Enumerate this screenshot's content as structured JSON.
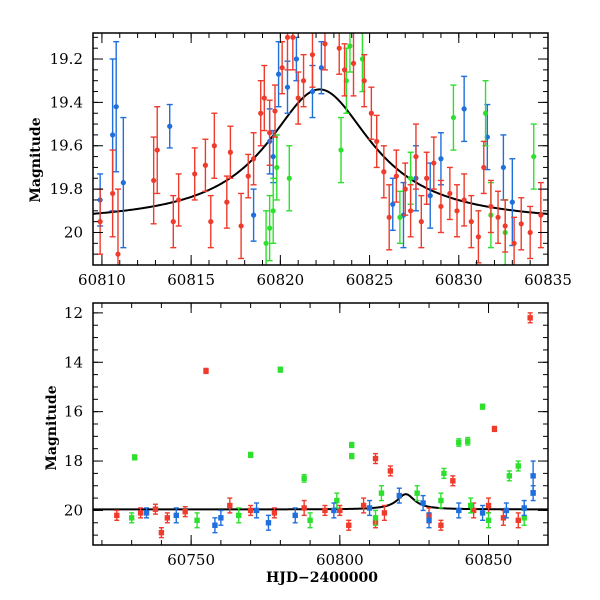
{
  "colors": {
    "red": "#ef3b2c",
    "green": "#2ee02e",
    "blue": "#1f6fdc",
    "model": "#000000"
  },
  "chart_data": [
    {
      "type": "scatter",
      "title": "",
      "xlabel": "",
      "ylabel": "Magnitude",
      "xlim": [
        60809.5,
        60835
      ],
      "ylim": [
        20.15,
        19.08
      ],
      "y_inverted": true,
      "xticks": [
        60810,
        60815,
        60820,
        60825,
        60830,
        60835
      ],
      "yticks": [
        19.2,
        19.4,
        19.6,
        19.8,
        20
      ],
      "xtick_labels": [
        "60810",
        "60815",
        "60820",
        "60825",
        "60830",
        "60835"
      ],
      "ytick_labels": [
        "19.2",
        "19.4",
        "19.6",
        "19.8",
        "20"
      ],
      "model": {
        "type": "lorentzian",
        "peak_x": 60822.2,
        "peak_y": 19.34,
        "baseline": 19.96,
        "width": 3.6,
        "color": "#000000"
      },
      "series": [
        {
          "color": "#1f6fdc",
          "points": [
            [
              60809.9,
              19.85,
              0.12
            ],
            [
              60810.6,
              19.55,
              0.35
            ],
            [
              60810.8,
              19.42,
              0.3
            ],
            [
              60811.2,
              19.77,
              0.3
            ],
            [
              60813.8,
              19.51,
              0.1
            ],
            [
              60818.5,
              19.92,
              0.12
            ],
            [
              60819.4,
              19.58,
              0.15
            ],
            [
              60819.6,
              19.65,
              0.12
            ],
            [
              60819.9,
              19.27,
              0.15
            ],
            [
              60820.4,
              19.33,
              0.12
            ],
            [
              60820.9,
              19.2,
              0.1
            ],
            [
              60821.8,
              19.35,
              0.12
            ],
            [
              60822.3,
              19.24,
              0.12
            ],
            [
              60826.3,
              19.87,
              0.12
            ],
            [
              60826.9,
              19.92,
              0.15
            ],
            [
              60827.6,
              19.75,
              0.15
            ],
            [
              60828.4,
              19.83,
              0.15
            ],
            [
              60829.0,
              19.66,
              0.12
            ],
            [
              60830.3,
              19.43,
              0.15
            ],
            [
              60831.6,
              19.56,
              0.15
            ],
            [
              60832.5,
              19.7,
              0.15
            ],
            [
              60833.0,
              19.86,
              0.2
            ]
          ]
        },
        {
          "color": "#2ee02e",
          "points": [
            [
              60819.2,
              20.05,
              0.15
            ],
            [
              60819.4,
              19.98,
              0.15
            ],
            [
              60819.6,
              19.9,
              0.15
            ],
            [
              60819.8,
              19.7,
              0.15
            ],
            [
              60820.5,
              19.75,
              0.15
            ],
            [
              60823.4,
              19.62,
              0.15
            ],
            [
              60823.7,
              19.3,
              0.15
            ],
            [
              60823.9,
              19.14,
              0.12
            ],
            [
              60824.6,
              19.2,
              0.15
            ],
            [
              60826.7,
              19.93,
              0.12
            ],
            [
              60827.3,
              19.75,
              0.12
            ],
            [
              60829.7,
              19.47,
              0.15
            ],
            [
              60831.5,
              19.45,
              0.15
            ],
            [
              60831.8,
              19.92,
              0.15
            ],
            [
              60832.6,
              20.0,
              0.15
            ],
            [
              60834.2,
              19.65,
              0.15
            ]
          ]
        },
        {
          "color": "#ef3b2c",
          "points": [
            [
              60809.9,
              19.95,
              0.15
            ],
            [
              60810.6,
              19.82,
              0.2
            ],
            [
              60810.9,
              20.1,
              0.3
            ],
            [
              60812.9,
              19.76,
              0.2
            ],
            [
              60813.1,
              19.62,
              0.2
            ],
            [
              60814.0,
              19.95,
              0.12
            ],
            [
              60814.3,
              19.85,
              0.12
            ],
            [
              60815.2,
              19.73,
              0.12
            ],
            [
              60815.8,
              19.69,
              0.12
            ],
            [
              60816.1,
              19.95,
              0.12
            ],
            [
              60816.3,
              19.6,
              0.15
            ],
            [
              60817.0,
              19.86,
              0.12
            ],
            [
              60817.2,
              19.63,
              0.12
            ],
            [
              60817.8,
              19.97,
              0.15
            ],
            [
              60818.2,
              19.74,
              0.1
            ],
            [
              60818.5,
              19.66,
              0.12
            ],
            [
              60818.9,
              19.45,
              0.15
            ],
            [
              60819.1,
              19.38,
              0.15
            ],
            [
              60819.4,
              19.54,
              0.15
            ],
            [
              60819.7,
              19.44,
              0.12
            ],
            [
              60820.1,
              19.24,
              0.12
            ],
            [
              60820.4,
              19.1,
              0.15
            ],
            [
              60820.7,
              19.1,
              0.15
            ],
            [
              60821.0,
              19.38,
              0.12
            ],
            [
              60821.3,
              19.3,
              0.12
            ],
            [
              60821.8,
              19.18,
              0.15
            ],
            [
              60822.5,
              19.13,
              0.12
            ],
            [
              60823.3,
              19.15,
              0.12
            ],
            [
              60823.6,
              19.25,
              0.12
            ],
            [
              60824.1,
              19.22,
              0.15
            ],
            [
              60824.7,
              19.3,
              0.12
            ],
            [
              60825.1,
              19.45,
              0.12
            ],
            [
              60825.4,
              19.58,
              0.12
            ],
            [
              60825.8,
              19.72,
              0.12
            ],
            [
              60826.1,
              19.93,
              0.15
            ],
            [
              60826.5,
              19.74,
              0.12
            ],
            [
              60827.0,
              19.8,
              0.12
            ],
            [
              60827.3,
              19.9,
              0.12
            ],
            [
              60827.6,
              19.65,
              0.15
            ],
            [
              60827.9,
              19.95,
              0.12
            ],
            [
              60828.2,
              19.75,
              0.12
            ],
            [
              60828.6,
              19.68,
              0.12
            ],
            [
              60829.0,
              19.88,
              0.12
            ],
            [
              60829.5,
              19.82,
              0.12
            ],
            [
              60829.9,
              19.9,
              0.12
            ],
            [
              60830.3,
              19.85,
              0.12
            ],
            [
              60830.7,
              19.95,
              0.12
            ],
            [
              60831.1,
              20.02,
              0.12
            ],
            [
              60831.4,
              19.7,
              0.12
            ],
            [
              60831.8,
              19.88,
              0.12
            ],
            [
              60832.2,
              19.93,
              0.12
            ],
            [
              60832.6,
              19.97,
              0.12
            ],
            [
              60833.1,
              20.05,
              0.12
            ],
            [
              60833.5,
              19.96,
              0.12
            ],
            [
              60834.0,
              20.0,
              0.12
            ],
            [
              60834.6,
              19.92,
              0.15
            ]
          ]
        }
      ]
    },
    {
      "type": "scatter",
      "title": "",
      "xlabel": "HJD−2400000",
      "ylabel": "Magnitude",
      "xlim": [
        60717,
        60870
      ],
      "ylim": [
        21.4,
        11.6
      ],
      "y_inverted": true,
      "xticks": [
        60750,
        60800,
        60850
      ],
      "yticks": [
        12,
        14,
        16,
        18,
        20
      ],
      "xtick_labels": [
        "60750",
        "60800",
        "60850"
      ],
      "ytick_labels": [
        "12",
        "14",
        "16",
        "18",
        "20"
      ],
      "model": {
        "type": "lorentzian",
        "peak_x": 60822.2,
        "peak_y": 19.34,
        "baseline": 19.96,
        "width": 3.6,
        "color": "#000000",
        "flat_start": 60717,
        "flat_end": 60865
      },
      "series": [
        {
          "color": "#ef3b2c",
          "points": [
            [
              60755,
              14.35,
              0.1
            ],
            [
              60864,
              12.2,
              0.2
            ],
            [
              60852,
              16.7,
              0.1
            ],
            [
              60812,
              17.9,
              0.2
            ],
            [
              60817,
              18.4,
              0.2
            ],
            [
              60838,
              18.8,
              0.2
            ],
            [
              60850,
              19.8,
              0.3
            ],
            [
              60733,
              20.1,
              0.2
            ],
            [
              60742,
              20.3,
              0.2
            ],
            [
              60770,
              20.0,
              0.2
            ],
            [
              60800,
              20.0,
              0.2
            ],
            [
              60830,
              20.2,
              0.3
            ],
            [
              60860,
              20.4,
              0.3
            ],
            [
              60763,
              19.8,
              0.3
            ],
            [
              60788,
              19.9,
              0.3
            ],
            [
              60808,
              19.8,
              0.3
            ],
            [
              60845,
              20.0,
              0.3
            ],
            [
              60725,
              20.2,
              0.2
            ],
            [
              60738,
              19.95,
              0.2
            ],
            [
              60748,
              20.05,
              0.2
            ],
            [
              60778,
              20.1,
              0.2
            ],
            [
              60795,
              20.0,
              0.2
            ],
            [
              60815,
              20.1,
              0.3
            ],
            [
              60855,
              20.3,
              0.3
            ],
            [
              60740,
              20.9,
              0.2
            ],
            [
              60803,
              20.6,
              0.2
            ],
            [
              60812,
              20.5,
              0.2
            ],
            [
              60834,
              20.6,
              0.2
            ]
          ]
        },
        {
          "color": "#2ee02e",
          "points": [
            [
              60780,
              14.3,
              0.1
            ],
            [
              60731,
              17.85,
              0.1
            ],
            [
              60770,
              17.75,
              0.1
            ],
            [
              60804,
              17.35,
              0.1
            ],
            [
              60804,
              17.8,
              0.1
            ],
            [
              60840,
              17.25,
              0.15
            ],
            [
              60843,
              17.2,
              0.15
            ],
            [
              60848,
              15.8,
              0.1
            ],
            [
              60788,
              18.7,
              0.15
            ],
            [
              60835,
              18.5,
              0.2
            ],
            [
              60857,
              18.6,
              0.2
            ],
            [
              60860,
              18.2,
              0.2
            ],
            [
              60814,
              19.3,
              0.3
            ],
            [
              60826,
              19.3,
              0.3
            ],
            [
              60730,
              20.3,
              0.2
            ],
            [
              60752,
              20.4,
              0.3
            ],
            [
              60766,
              20.2,
              0.3
            ],
            [
              60790,
              20.4,
              0.3
            ],
            [
              60812,
              20.3,
              0.3
            ],
            [
              60850,
              20.4,
              0.3
            ],
            [
              60862,
              20.3,
              0.3
            ],
            [
              60799,
              19.6,
              0.3
            ],
            [
              60834,
              19.6,
              0.3
            ],
            [
              60844,
              19.8,
              0.3
            ]
          ]
        },
        {
          "color": "#1f6fdc",
          "points": [
            [
              60865,
              18.6,
              0.6
            ],
            [
              60865,
              19.3,
              0.3
            ],
            [
              60862,
              19.9,
              0.3
            ],
            [
              60735,
              20.1,
              0.2
            ],
            [
              60745,
              20.2,
              0.3
            ],
            [
              60760,
              20.3,
              0.3
            ],
            [
              60772,
              20.0,
              0.3
            ],
            [
              60785,
              20.2,
              0.3
            ],
            [
              60798,
              20.0,
              0.3
            ],
            [
              60810,
              19.9,
              0.3
            ],
            [
              60820,
              19.4,
              0.3
            ],
            [
              60828,
              19.7,
              0.3
            ],
            [
              60840,
              20.0,
              0.3
            ],
            [
              60848,
              20.1,
              0.3
            ],
            [
              60856,
              20.0,
              0.3
            ],
            [
              60758,
              20.6,
              0.3
            ],
            [
              60776,
              20.5,
              0.3
            ],
            [
              60830,
              20.4,
              0.3
            ]
          ]
        }
      ]
    }
  ]
}
